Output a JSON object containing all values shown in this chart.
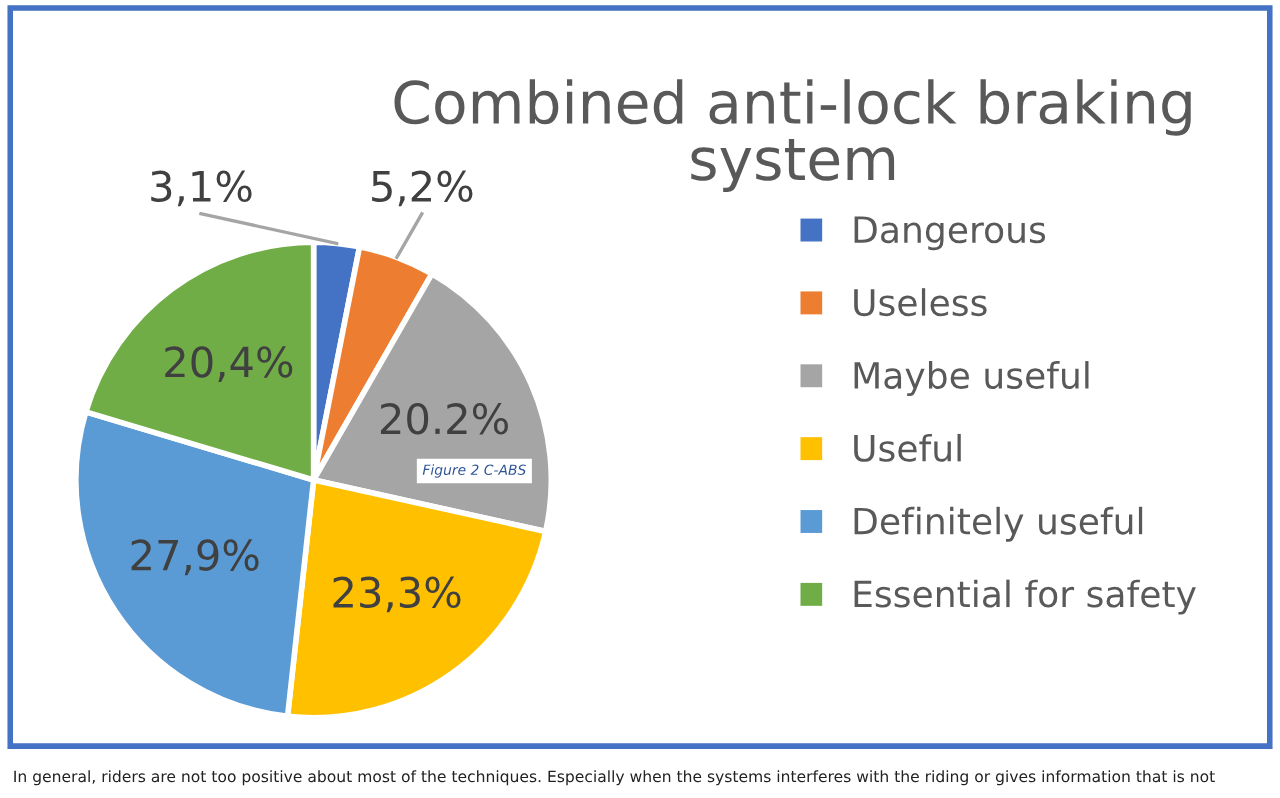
{
  "chart_data": {
    "type": "pie",
    "title": "Combined anti-lock braking system",
    "categories": [
      "Dangerous",
      "Useless",
      "Maybe useful",
      "Useful",
      "Definitely useful",
      "Essential for safety"
    ],
    "values": [
      3.1,
      5.2,
      20.2,
      23.3,
      27.9,
      20.4
    ],
    "value_labels": [
      "3,1%",
      "5,2%",
      "20.2%",
      "23,3%",
      "27,9%",
      "20,4%"
    ],
    "colors": [
      "#4472c4",
      "#ed7d31",
      "#a5a5a5",
      "#ffc000",
      "#5b9bd5",
      "#70ad47"
    ],
    "legend": "right",
    "annotations": [
      "Figure 2 C-ABS",
      "In general, riders are not too positive about most of the techniques. Especially when the systems interferes with the riding or gives information that is not"
    ]
  }
}
